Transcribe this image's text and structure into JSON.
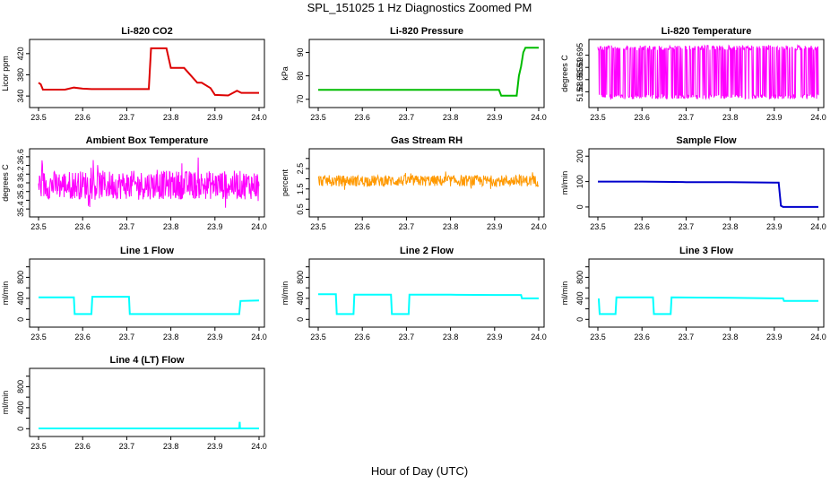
{
  "figure": {
    "title": "SPL_151025  1 Hz Diagnostics Zoomed PM",
    "xlabel": "Hour of Day (UTC)"
  },
  "chart_data": [
    {
      "type": "line",
      "title": "Li-820 CO2",
      "ylabel": "Licor ppm",
      "color": "#dd0000",
      "xlim": [
        23.5,
        24.0
      ],
      "ylim": [
        325,
        440
      ],
      "xticks": [
        "23.5",
        "23.6",
        "23.7",
        "23.8",
        "23.9",
        "24.0"
      ],
      "yticks": [
        340,
        380,
        420
      ],
      "x": [
        23.5,
        23.505,
        23.51,
        23.56,
        23.58,
        23.6,
        23.62,
        23.7,
        23.75,
        23.755,
        23.76,
        23.79,
        23.8,
        23.82,
        23.83,
        23.86,
        23.87,
        23.89,
        23.9,
        23.93,
        23.95,
        23.96,
        23.98,
        24.0
      ],
      "y": [
        365,
        362,
        352,
        352,
        356,
        354,
        353,
        353,
        353,
        430,
        430,
        430,
        393,
        393,
        393,
        365,
        365,
        355,
        342,
        341,
        350,
        346,
        346,
        346
      ]
    },
    {
      "type": "line",
      "title": "Li-820 Pressure",
      "ylabel": "kPa",
      "color": "#00bb00",
      "xlim": [
        23.5,
        24.0
      ],
      "ylim": [
        68,
        94
      ],
      "xticks": [
        "23.5",
        "23.6",
        "23.7",
        "23.8",
        "23.9",
        "24.0"
      ],
      "yticks": [
        70,
        80,
        90
      ],
      "x": [
        23.5,
        23.6,
        23.7,
        23.8,
        23.9,
        23.91,
        23.915,
        23.95,
        23.955,
        23.96,
        23.965,
        23.97,
        24.0
      ],
      "y": [
        74,
        74,
        74,
        74,
        74,
        74,
        71.5,
        71.5,
        80,
        84,
        90,
        92,
        92
      ]
    },
    {
      "type": "line",
      "title": "Li-820 Temperature",
      "ylabel": "degrees C",
      "color": "#ff00ff",
      "xlim": [
        23.5,
        24.0
      ],
      "ylim": [
        51.675,
        51.7
      ],
      "xticks": [
        "23.5",
        "23.6",
        "23.7",
        "23.8",
        "23.9",
        "24.0"
      ],
      "yticks": [
        51.68,
        51.685,
        51.69,
        51.695
      ],
      "range": [
        51.677,
        51.699
      ],
      "noise": "dense"
    },
    {
      "type": "line",
      "title": "Ambient Box Temperature",
      "ylabel": "degrees C",
      "color": "#ff00ff",
      "xlim": [
        23.5,
        24.0
      ],
      "ylim": [
        35.3,
        36.7
      ],
      "xticks": [
        "23.5",
        "23.6",
        "23.7",
        "23.8",
        "23.9",
        "24.0"
      ],
      "yticks": [
        35.4,
        35.6,
        35.8,
        36.0,
        36.2,
        36.4,
        36.6
      ],
      "ytick_labels": [
        "35.4",
        "",
        "35.8",
        "",
        "36.2",
        "",
        "36.6"
      ],
      "range": [
        35.4,
        36.6
      ],
      "mean": 35.95,
      "noise": "dense"
    },
    {
      "type": "line",
      "title": "Gas Stream RH",
      "ylabel": "percent",
      "color": "#ff9900",
      "xlim": [
        23.5,
        24.0
      ],
      "ylim": [
        0.3,
        3.3
      ],
      "xticks": [
        "23.5",
        "23.6",
        "23.7",
        "23.8",
        "23.9",
        "24.0"
      ],
      "yticks": [
        0.5,
        1.0,
        1.5,
        2.0,
        2.5,
        3.0
      ],
      "ytick_labels": [
        "0.5",
        "",
        "1.5",
        "",
        "2.5",
        ""
      ],
      "range": [
        1.4,
        2.4
      ],
      "mean": 1.9,
      "noise": "dense"
    },
    {
      "type": "line",
      "title": "Sample Flow",
      "ylabel": "ml/min",
      "color": "#0000cc",
      "xlim": [
        23.5,
        24.0
      ],
      "ylim": [
        -25,
        215
      ],
      "xticks": [
        "23.5",
        "23.6",
        "23.7",
        "23.8",
        "23.9",
        "24.0"
      ],
      "yticks": [
        0,
        100,
        200
      ],
      "x": [
        23.5,
        23.6,
        23.7,
        23.8,
        23.9,
        23.91,
        23.915,
        23.92,
        24.0
      ],
      "y": [
        100,
        100,
        98,
        98,
        96,
        96,
        5,
        0,
        0
      ]
    },
    {
      "type": "line",
      "title": "Line 1 Flow",
      "ylabel": "ml/min",
      "color": "#00ffff",
      "xlim": [
        23.5,
        24.0
      ],
      "ylim": [
        -80,
        1080
      ],
      "xticks": [
        "23.5",
        "23.6",
        "23.7",
        "23.8",
        "23.9",
        "24.0"
      ],
      "yticks": [
        0,
        200,
        400,
        600,
        800,
        1000
      ],
      "ytick_labels": [
        "0",
        "",
        "400",
        "",
        "800",
        ""
      ],
      "x": [
        23.5,
        23.505,
        23.58,
        23.582,
        23.62,
        23.622,
        23.705,
        23.707,
        23.8,
        23.9,
        23.955,
        23.958,
        24.0
      ],
      "y": [
        420,
        420,
        420,
        100,
        100,
        430,
        430,
        100,
        100,
        100,
        100,
        350,
        360
      ]
    },
    {
      "type": "line",
      "title": "Line 2 Flow",
      "ylabel": "ml/min",
      "color": "#00ffff",
      "xlim": [
        23.5,
        24.0
      ],
      "ylim": [
        -80,
        1080
      ],
      "xticks": [
        "23.5",
        "23.6",
        "23.7",
        "23.8",
        "23.9",
        "24.0"
      ],
      "yticks": [
        0,
        200,
        400,
        600,
        800,
        1000
      ],
      "ytick_labels": [
        "0",
        "",
        "400",
        "",
        "800",
        ""
      ],
      "x": [
        23.5,
        23.54,
        23.542,
        23.58,
        23.582,
        23.665,
        23.667,
        23.705,
        23.707,
        23.8,
        23.9,
        23.96,
        23.962,
        24.0
      ],
      "y": [
        480,
        480,
        100,
        100,
        470,
        470,
        100,
        100,
        470,
        470,
        465,
        465,
        400,
        400
      ]
    },
    {
      "type": "line",
      "title": "Line 3 Flow",
      "ylabel": "ml/min",
      "color": "#00ffff",
      "xlim": [
        23.5,
        24.0
      ],
      "ylim": [
        -80,
        1080
      ],
      "xticks": [
        "23.5",
        "23.6",
        "23.7",
        "23.8",
        "23.9",
        "24.0"
      ],
      "yticks": [
        0,
        200,
        400,
        600,
        800,
        1000
      ],
      "ytick_labels": [
        "0",
        "",
        "400",
        "",
        "800",
        ""
      ],
      "x": [
        23.5,
        23.502,
        23.504,
        23.54,
        23.542,
        23.625,
        23.627,
        23.665,
        23.667,
        23.8,
        23.9,
        23.92,
        23.922,
        24.0
      ],
      "y": [
        380,
        380,
        100,
        100,
        420,
        420,
        100,
        100,
        420,
        410,
        400,
        400,
        350,
        350
      ]
    },
    {
      "type": "line",
      "title": "Line 4 (LT) Flow",
      "ylabel": "ml/min",
      "color": "#00ffff",
      "xlim": [
        23.5,
        24.0
      ],
      "ylim": [
        -80,
        1080
      ],
      "xticks": [
        "23.5",
        "23.6",
        "23.7",
        "23.8",
        "23.9",
        "24.0"
      ],
      "yticks": [
        0,
        200,
        400,
        600,
        800,
        1000
      ],
      "ytick_labels": [
        "0",
        "",
        "400",
        "",
        "800",
        ""
      ],
      "x": [
        23.5,
        23.6,
        23.7,
        23.8,
        23.9,
        23.955,
        23.956,
        23.957,
        23.958,
        24.0
      ],
      "y": [
        5,
        5,
        5,
        5,
        5,
        5,
        130,
        5,
        5,
        5
      ]
    }
  ]
}
